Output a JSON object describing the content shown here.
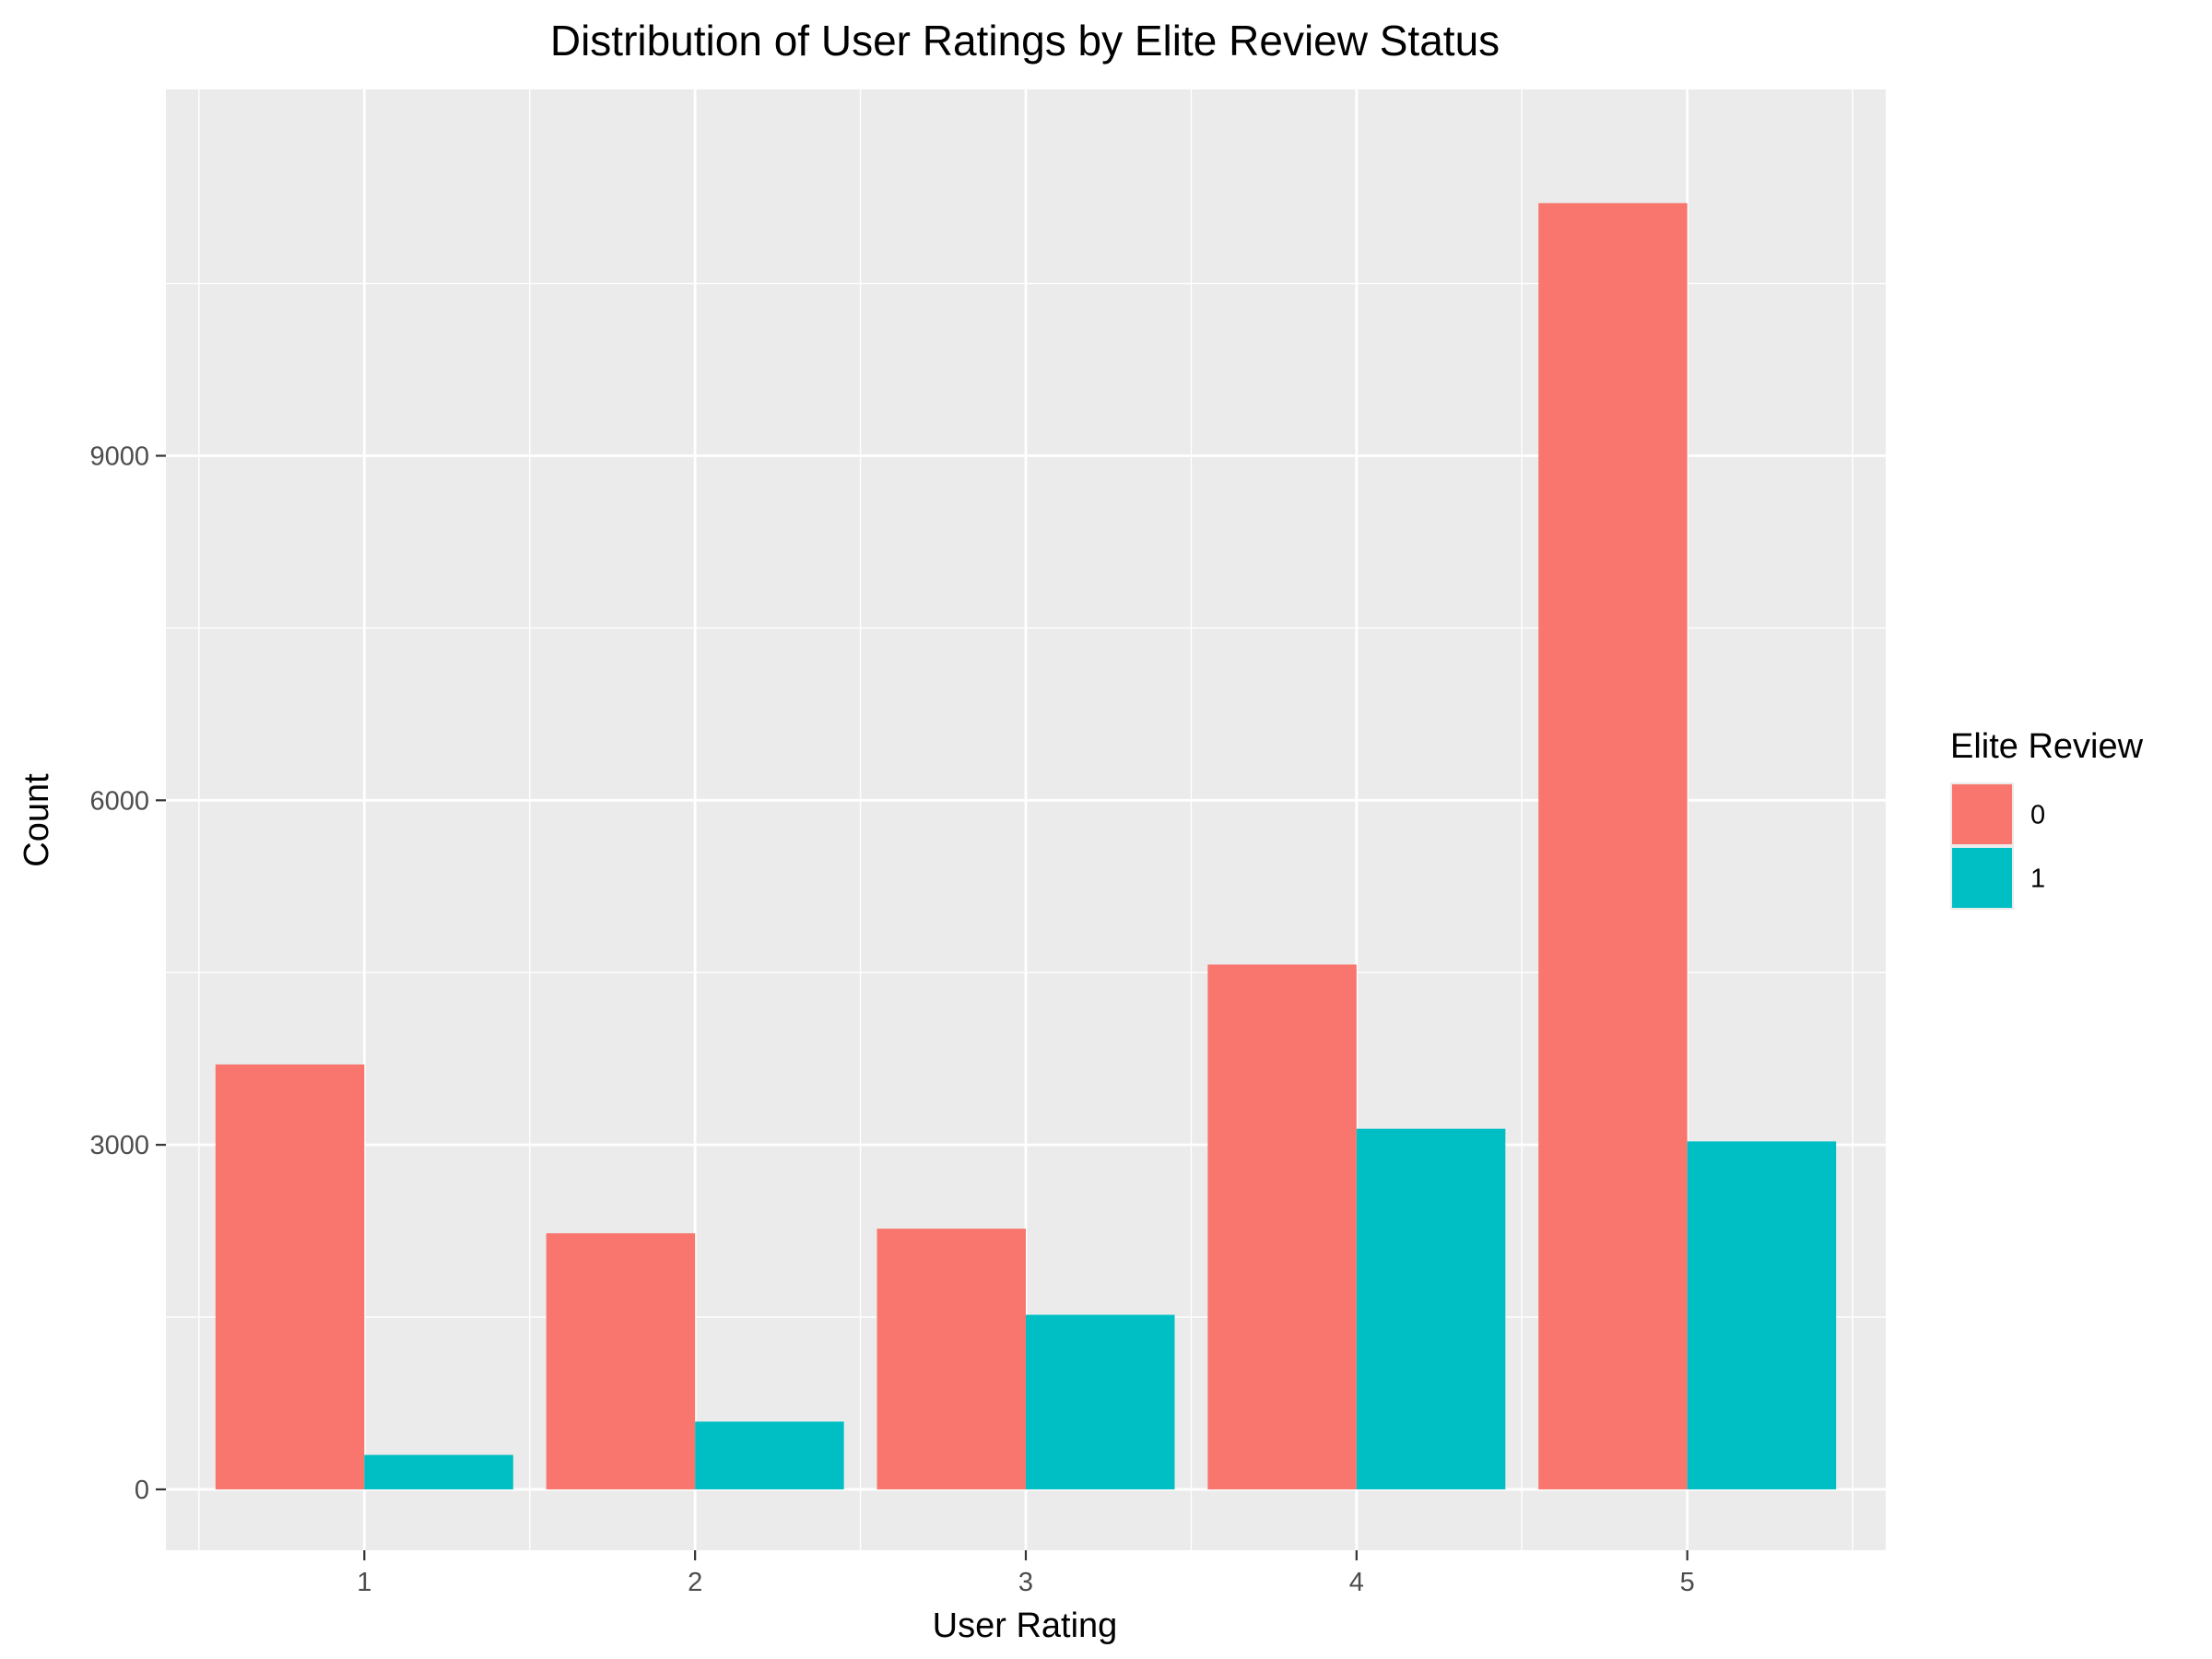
{
  "chart_data": {
    "type": "bar",
    "title": "Distribution of User Ratings by Elite Review Status",
    "xlabel": "User Rating",
    "ylabel": "Count",
    "categories": [
      "1",
      "2",
      "3",
      "4",
      "5"
    ],
    "series": [
      {
        "name": "0",
        "values": [
          3700,
          2230,
          2270,
          4570,
          11200
        ]
      },
      {
        "name": "1",
        "values": [
          300,
          590,
          1520,
          3140,
          3030
        ]
      }
    ],
    "y_ticks": [
      "0",
      "3000",
      "6000",
      "9000"
    ],
    "y_tick_values": [
      0,
      3000,
      6000,
      9000
    ],
    "ylim": [
      -530,
      12190
    ],
    "legend": {
      "title": "Elite Review",
      "position": "right"
    },
    "colors": {
      "series_0": "#F8766D",
      "series_1": "#00BFC4",
      "panel_background": "#EBEBEB",
      "grid": "#FFFFFF",
      "tick_label": "#4D4D4D"
    },
    "grid": true
  }
}
